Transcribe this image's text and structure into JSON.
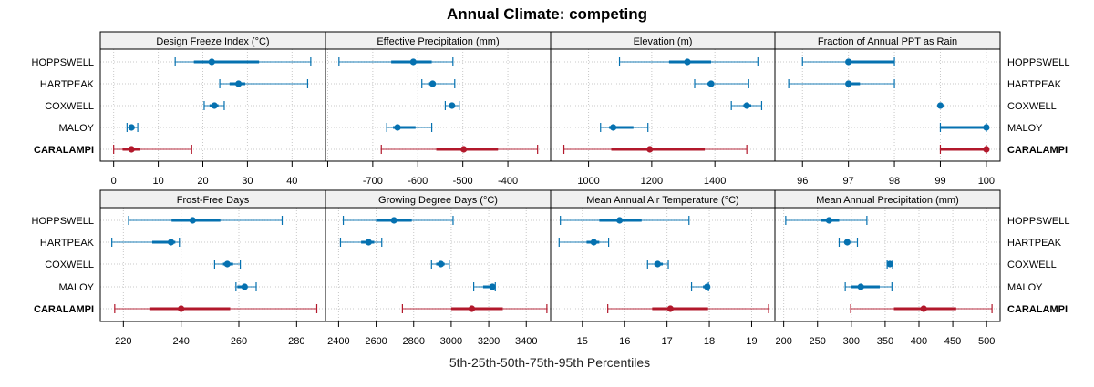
{
  "chart_data": {
    "type": "dotplot-errorbar",
    "title": "Annual Climate: competing",
    "xlabel": "5th-25th-50th-75th-95th Percentiles",
    "rows": [
      "HOPPSWELL",
      "HARTPEAK",
      "COXWELL",
      "MALOY",
      "CARALAMPI"
    ],
    "highlight_row": "CARALAMPI",
    "colors": {
      "normal": "#0571b0",
      "highlight": "#b2182b",
      "strip_bg": "#f0f0f0",
      "grid": "#c8c8c8"
    },
    "layout_grid": "2x4",
    "panels": [
      {
        "title": "Design Freeze Index (°C)",
        "xlim": [
          -3,
          47.5
        ],
        "ticks": [
          0,
          10,
          20,
          30,
          40
        ],
        "tick_labels": [
          "0",
          "10",
          "20",
          "30",
          "40"
        ],
        "data": {
          "HOPPSWELL": [
            13.8,
            18.0,
            22.0,
            32.6,
            44.2
          ],
          "HARTPEAK": [
            23.8,
            26.0,
            28.0,
            29.5,
            43.5
          ],
          "COXWELL": [
            20.3,
            21.5,
            22.6,
            23.5,
            24.8
          ],
          "MALOY": [
            3.0,
            3.5,
            4.0,
            4.6,
            5.4
          ],
          "CARALAMPI": [
            0.0,
            2.0,
            4.0,
            6.0,
            17.5
          ]
        }
      },
      {
        "title": "Effective Precipitation (mm)",
        "xlim": [
          -805,
          -305
        ],
        "ticks": [
          -800,
          -700,
          -600,
          -500,
          -400
        ],
        "tick_labels": [
          "",
          "-700",
          "-600",
          "-500",
          "-400"
        ],
        "data": {
          "HOPPSWELL": [
            -775,
            -659,
            -610,
            -569,
            -522
          ],
          "HARTPEAK": [
            -591,
            -575,
            -567,
            -560,
            -518
          ],
          "COXWELL": [
            -539,
            -530,
            -524,
            -518,
            -508
          ],
          "MALOY": [
            -669,
            -655,
            -645,
            -605,
            -569
          ],
          "CARALAMPI": [
            -681,
            -559,
            -498,
            -422,
            -334
          ]
        }
      },
      {
        "title": "Elevation (m)",
        "xlim": [
          880,
          1590
        ],
        "ticks": [
          1000,
          1200,
          1400
        ],
        "tick_labels": [
          "1000",
          "1200",
          "1400"
        ],
        "data": {
          "HOPPSWELL": [
            1098,
            1255,
            1313,
            1388,
            1536
          ],
          "HARTPEAK": [
            1336,
            1375,
            1388,
            1395,
            1507
          ],
          "COXWELL": [
            1452,
            1490,
            1501,
            1515,
            1548
          ],
          "MALOY": [
            1038,
            1065,
            1078,
            1142,
            1188
          ],
          "CARALAMPI": [
            922,
            1072,
            1194,
            1368,
            1501
          ]
        }
      },
      {
        "title": "Fraction of Annual PPT as Rain",
        "xlim": [
          95.4,
          100.3
        ],
        "ticks": [
          96,
          97,
          98,
          99,
          100
        ],
        "tick_labels": [
          "96",
          "97",
          "98",
          "99",
          "100"
        ],
        "data": {
          "HOPPSWELL": [
            96,
            97,
            97,
            98,
            98
          ],
          "HARTPEAK": [
            95.7,
            97,
            97,
            97.25,
            98
          ],
          "COXWELL": [
            99,
            99,
            99,
            99,
            99
          ],
          "MALOY": [
            99,
            99,
            100,
            100,
            100
          ],
          "CARALAMPI": [
            99,
            99,
            100,
            100,
            100
          ]
        }
      },
      {
        "title": "Frost-Free Days",
        "xlim": [
          212,
          290
        ],
        "ticks": [
          220,
          240,
          260,
          280
        ],
        "tick_labels": [
          "220",
          "240",
          "260",
          "280"
        ],
        "data": {
          "HOPPSWELL": [
            221.8,
            236.7,
            244,
            253.6,
            275
          ],
          "HARTPEAK": [
            216,
            230,
            236.5,
            238,
            239.4
          ],
          "COXWELL": [
            251.6,
            254.5,
            256,
            258,
            260.5
          ],
          "MALOY": [
            259,
            259.5,
            262,
            263,
            266
          ],
          "CARALAMPI": [
            217,
            229,
            240,
            257,
            287
          ]
        }
      },
      {
        "title": "Growing Degree Days (°C)",
        "xlim": [
          2330,
          3530
        ],
        "ticks": [
          2400,
          2600,
          2800,
          3000,
          3200,
          3400
        ],
        "tick_labels": [
          "2400",
          "2600",
          "2800",
          "3000",
          "3200",
          "3400"
        ],
        "data": {
          "HOPPSWELL": [
            2425,
            2600,
            2695,
            2790,
            3010
          ],
          "HARTPEAK": [
            2410,
            2520,
            2560,
            2590,
            2630
          ],
          "COXWELL": [
            2895,
            2920,
            2945,
            2965,
            2990
          ],
          "MALOY": [
            3120,
            3170,
            3220,
            3228,
            3235
          ],
          "CARALAMPI": [
            2740,
            3000,
            3110,
            3275,
            3510
          ]
        }
      },
      {
        "title": "Mean Annual Air Temperature (°C)",
        "xlim": [
          14.25,
          19.55
        ],
        "ticks": [
          15,
          16,
          17,
          18,
          19
        ],
        "tick_labels": [
          "15",
          "16",
          "17",
          "18",
          "19"
        ],
        "data": {
          "HOPPSWELL": [
            14.48,
            15.4,
            15.88,
            16.4,
            17.52
          ],
          "HARTPEAK": [
            14.45,
            15.1,
            15.27,
            15.4,
            15.62
          ],
          "COXWELL": [
            16.54,
            16.7,
            16.78,
            16.9,
            17.03
          ],
          "MALOY": [
            17.58,
            17.85,
            17.95,
            17.97,
            17.98
          ],
          "CARALAMPI": [
            15.6,
            16.65,
            17.08,
            17.97,
            19.4
          ]
        }
      },
      {
        "title": "Mean Annual Precipitation (mm)",
        "xlim": [
          187,
          520
        ],
        "ticks": [
          200,
          250,
          300,
          350,
          400,
          450,
          500
        ],
        "tick_labels": [
          "200",
          "250",
          "300",
          "350",
          "400",
          "450",
          "500"
        ],
        "data": {
          "HOPPSWELL": [
            203,
            255,
            267,
            282,
            323
          ],
          "HARTPEAK": [
            282,
            290,
            294,
            298,
            309
          ],
          "COXWELL": [
            353,
            355,
            357,
            359,
            361
          ],
          "MALOY": [
            291,
            300,
            314,
            342,
            360
          ],
          "CARALAMPI": [
            299,
            363,
            407,
            455,
            508
          ]
        }
      }
    ]
  }
}
